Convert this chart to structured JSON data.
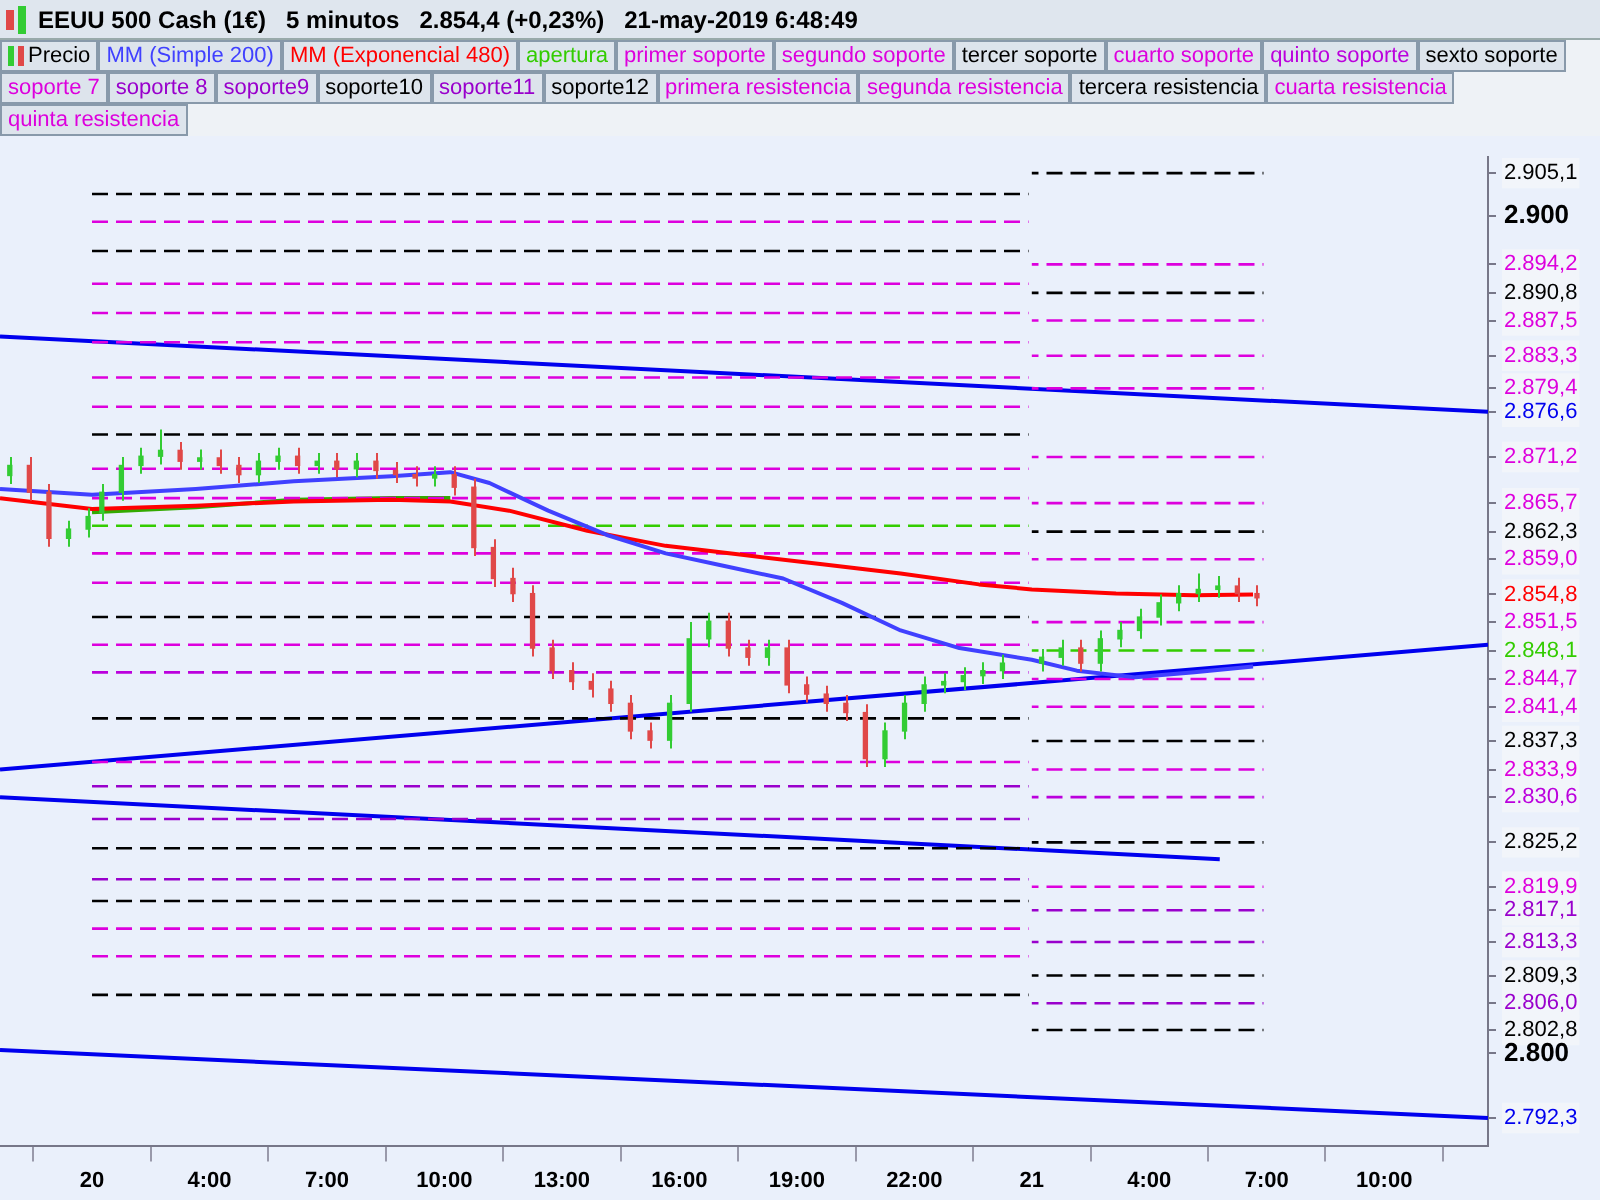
{
  "chart_data": {
    "type": "candlestick",
    "title": "EEUU 500 Cash (1€)   5 minutos   2.854,4 (+0,23%)   21-may-2019 6:48:49",
    "xlim": [
      "2019-05-19T22:39",
      "2019-05-21T12:39"
    ],
    "xticks": [
      {
        "value": "2019-05-20T01:00",
        "label": "20"
      },
      {
        "value": "2019-05-20T04:00",
        "label": "4:00"
      },
      {
        "value": "2019-05-20T07:00",
        "label": "7:00"
      },
      {
        "value": "2019-05-20T10:00",
        "label": "10:00"
      },
      {
        "value": "2019-05-20T13:00",
        "label": "13:00"
      },
      {
        "value": "2019-05-20T16:00",
        "label": "16:00"
      },
      {
        "value": "2019-05-20T19:00",
        "label": "19:00"
      },
      {
        "value": "2019-05-20T22:00",
        "label": "22:00"
      },
      {
        "value": "2019-05-21T01:00",
        "label": "21"
      },
      {
        "value": "2019-05-21T04:00",
        "label": "4:00"
      },
      {
        "value": "2019-05-21T07:00",
        "label": "7:00"
      },
      {
        "value": "2019-05-21T10:00",
        "label": "10:00"
      }
    ],
    "ylim": [
      2789,
      2907
    ],
    "yticks": [
      {
        "value": 2905.1,
        "label": "2.905,1"
      },
      {
        "value": 2900,
        "label": "2.900"
      },
      {
        "value": 2894.2,
        "label": "2.894,2"
      },
      {
        "value": 2890.8,
        "label": "2.890,8"
      },
      {
        "value": 2887.5,
        "label": "2.887,5"
      },
      {
        "value": 2883.3,
        "label": "2.883,3"
      },
      {
        "value": 2879.4,
        "label": "2.879,4"
      },
      {
        "value": 2876.6,
        "label": "2.876,6"
      },
      {
        "value": 2871.2,
        "label": "2.871,2"
      },
      {
        "value": 2865.7,
        "label": "2.865,7"
      },
      {
        "value": 2862.3,
        "label": "2.862,3"
      },
      {
        "value": 2859.0,
        "label": "2.859,0"
      },
      {
        "value": 2854.8,
        "label": "2.854,8"
      },
      {
        "value": 2851.5,
        "label": "2.851,5"
      },
      {
        "value": 2848.1,
        "label": "2.848,1"
      },
      {
        "value": 2844.7,
        "label": "2.844,7"
      },
      {
        "value": 2841.4,
        "label": "2.841,4"
      },
      {
        "value": 2837.3,
        "label": "2.837,3"
      },
      {
        "value": 2833.9,
        "label": "2.833,9"
      },
      {
        "value": 2830.6,
        "label": "2.830,6"
      },
      {
        "value": 2825.2,
        "label": "2.825,2"
      },
      {
        "value": 2819.9,
        "label": "2.819,9"
      },
      {
        "value": 2817.1,
        "label": "2.817,1"
      },
      {
        "value": 2813.3,
        "label": "2.813,3"
      },
      {
        "value": 2809.3,
        "label": "2.809,3"
      },
      {
        "value": 2806.0,
        "label": "2.806,0"
      },
      {
        "value": 2802.8,
        "label": "2.802,8"
      },
      {
        "value": 2800,
        "label": "2.800"
      },
      {
        "value": 2792.3,
        "label": "2.792,3"
      }
    ],
    "legend": "top",
    "marker": "none",
    "series": [
      {
        "name": "Precio",
        "x": [
          "2019-05-19T22:54",
          "2019-05-19T23:24",
          "2019-05-19T23:54",
          "2019-05-20T00:24",
          "2019-05-20T00:54",
          "2019-05-20T01:15",
          "2019-05-20T01:45",
          "2019-05-20T02:15",
          "2019-05-20T02:45",
          "2019-05-20T03:15",
          "2019-05-20T03:45",
          "2019-05-20T04:15",
          "2019-05-20T04:45",
          "2019-05-20T05:15",
          "2019-05-20T05:45",
          "2019-05-20T06:15",
          "2019-05-20T06:45",
          "2019-05-20T07:15",
          "2019-05-20T07:45",
          "2019-05-20T08:15",
          "2019-05-20T08:45",
          "2019-05-20T09:15",
          "2019-05-20T09:45",
          "2019-05-20T10:15",
          "2019-05-20T10:45",
          "2019-05-20T11:15",
          "2019-05-20T11:45",
          "2019-05-20T12:15",
          "2019-05-20T12:45",
          "2019-05-20T13:15",
          "2019-05-20T13:45",
          "2019-05-20T14:15",
          "2019-05-20T14:45",
          "2019-05-20T15:15",
          "2019-05-20T15:45",
          "2019-05-20T16:15",
          "2019-05-20T16:45",
          "2019-05-20T17:15",
          "2019-05-20T17:45",
          "2019-05-20T18:15",
          "2019-05-20T18:45",
          "2019-05-20T19:15",
          "2019-05-20T19:45",
          "2019-05-20T20:15",
          "2019-05-20T20:45",
          "2019-05-20T21:15",
          "2019-05-20T21:45",
          "2019-05-20T22:15",
          "2019-05-20T22:45",
          "2019-05-20T23:15",
          "2019-05-20T23:45",
          "2019-05-21T00:15",
          "2019-05-21T01:15",
          "2019-05-21T01:45",
          "2019-05-21T02:15",
          "2019-05-21T02:45",
          "2019-05-21T03:15",
          "2019-05-21T03:45",
          "2019-05-21T04:15",
          "2019-05-21T04:45",
          "2019-05-21T05:15",
          "2019-05-21T05:45",
          "2019-05-21T06:15",
          "2019-05-21T06:45"
        ],
        "ohlc": [
          [
            2869.0,
            2871.2,
            2868.0,
            2870.2
          ],
          [
            2870.2,
            2871.2,
            2866.0,
            2867.0
          ],
          [
            2867.0,
            2868.0,
            2860.5,
            2861.5
          ],
          [
            2861.5,
            2863.6,
            2860.5,
            2862.6
          ],
          [
            2862.6,
            2865.1,
            2861.6,
            2864.1
          ],
          [
            2864.6,
            2868.0,
            2863.6,
            2867.0
          ],
          [
            2867.0,
            2871.2,
            2866.0,
            2870.2
          ],
          [
            2870.2,
            2872.3,
            2869.2,
            2871.3
          ],
          [
            2871.3,
            2874.5,
            2870.3,
            2872.0
          ],
          [
            2872.0,
            2873.0,
            2869.7,
            2870.7
          ],
          [
            2870.7,
            2872.1,
            2869.7,
            2871.1
          ],
          [
            2871.1,
            2872.1,
            2869.2,
            2870.2
          ],
          [
            2870.2,
            2871.2,
            2868.1,
            2869.1
          ],
          [
            2869.1,
            2871.7,
            2868.1,
            2870.7
          ],
          [
            2870.7,
            2872.3,
            2869.7,
            2871.3
          ],
          [
            2871.3,
            2872.3,
            2869.2,
            2870.2
          ],
          [
            2870.2,
            2871.7,
            2869.2,
            2870.7
          ],
          [
            2870.7,
            2871.7,
            2868.8,
            2869.8
          ],
          [
            2869.8,
            2871.7,
            2868.8,
            2870.7
          ],
          [
            2870.7,
            2871.7,
            2868.6,
            2869.6
          ],
          [
            2869.6,
            2870.6,
            2868.1,
            2869.1
          ],
          [
            2869.1,
            2870.1,
            2867.7,
            2868.7
          ],
          [
            2868.7,
            2870.1,
            2867.7,
            2869.1
          ],
          [
            2869.1,
            2870.1,
            2866.6,
            2867.6
          ],
          [
            2867.6,
            2868.6,
            2859.4,
            2860.4
          ],
          [
            2860.4,
            2861.4,
            2855.7,
            2856.7
          ],
          [
            2856.7,
            2858.0,
            2853.9,
            2854.9
          ],
          [
            2854.9,
            2855.9,
            2847.4,
            2848.4
          ],
          [
            2848.4,
            2849.4,
            2844.7,
            2845.7
          ],
          [
            2845.7,
            2846.7,
            2843.4,
            2844.4
          ],
          [
            2844.4,
            2845.4,
            2842.5,
            2843.5
          ],
          [
            2843.5,
            2844.5,
            2840.8,
            2841.8
          ],
          [
            2841.8,
            2842.8,
            2837.5,
            2838.5
          ],
          [
            2838.5,
            2839.5,
            2836.4,
            2837.4
          ],
          [
            2837.4,
            2842.8,
            2836.4,
            2841.8
          ],
          [
            2841.8,
            2851.5,
            2840.8,
            2849.5
          ],
          [
            2849.5,
            2852.6,
            2848.5,
            2851.6
          ],
          [
            2851.6,
            2852.6,
            2847.4,
            2848.4
          ],
          [
            2848.4,
            2849.4,
            2846.3,
            2847.3
          ],
          [
            2847.3,
            2849.4,
            2846.3,
            2848.4
          ],
          [
            2848.4,
            2849.4,
            2843.0,
            2844.0
          ],
          [
            2844.0,
            2845.0,
            2841.9,
            2842.9
          ],
          [
            2842.9,
            2843.9,
            2840.8,
            2841.8
          ],
          [
            2841.8,
            2842.8,
            2839.7,
            2840.7
          ],
          [
            2840.7,
            2841.7,
            2834.2,
            2835.2
          ],
          [
            2835.2,
            2839.5,
            2834.2,
            2838.5
          ],
          [
            2838.5,
            2842.8,
            2837.5,
            2841.8
          ],
          [
            2841.8,
            2845.0,
            2840.8,
            2844.0
          ],
          [
            2844.0,
            2845.4,
            2843.0,
            2844.4
          ],
          [
            2844.4,
            2846.1,
            2843.4,
            2845.1
          ],
          [
            2845.1,
            2846.7,
            2844.1,
            2845.7
          ],
          [
            2845.7,
            2847.6,
            2844.7,
            2846.6
          ],
          [
            2846.6,
            2848.3,
            2845.6,
            2847.3
          ],
          [
            2847.3,
            2849.4,
            2846.3,
            2848.4
          ],
          [
            2848.4,
            2849.4,
            2845.6,
            2846.6
          ],
          [
            2846.6,
            2850.5,
            2845.6,
            2849.5
          ],
          [
            2849.5,
            2851.5,
            2848.5,
            2850.5
          ],
          [
            2850.5,
            2853.1,
            2849.5,
            2852.1
          ],
          [
            2852.1,
            2854.8,
            2851.1,
            2853.8
          ],
          [
            2853.8,
            2855.9,
            2852.8,
            2854.9
          ],
          [
            2854.9,
            2857.3,
            2853.9,
            2855.4
          ],
          [
            2855.4,
            2857.0,
            2854.4,
            2855.8
          ],
          [
            2855.8,
            2856.8,
            2853.9,
            2854.9
          ],
          [
            2854.9,
            2855.9,
            2853.4,
            2854.4
          ]
        ],
        "colors": [
          "#33cc33",
          "#e04848",
          "#e04848",
          "#33cc33",
          "#33cc33",
          "#33cc33",
          "#33cc33",
          "#33cc33",
          "#33cc33",
          "#e04848",
          "#33cc33",
          "#e04848",
          "#e04848",
          "#33cc33",
          "#33cc33",
          "#e04848",
          "#33cc33",
          "#e04848",
          "#33cc33",
          "#e04848",
          "#e04848",
          "#e04848",
          "#33cc33",
          "#e04848",
          "#e04848",
          "#e04848",
          "#e04848",
          "#e04848",
          "#e04848",
          "#e04848",
          "#e04848",
          "#e04848",
          "#e04848",
          "#e04848",
          "#33cc33",
          "#33cc33",
          "#33cc33",
          "#e04848",
          "#e04848",
          "#33cc33",
          "#e04848",
          "#e04848",
          "#e04848",
          "#e04848",
          "#e04848",
          "#33cc33",
          "#33cc33",
          "#33cc33",
          "#33cc33",
          "#33cc33",
          "#33cc33",
          "#33cc33",
          "#33cc33",
          "#33cc33",
          "#e04848",
          "#33cc33",
          "#33cc33",
          "#33cc33",
          "#33cc33",
          "#33cc33",
          "#33cc33",
          "#33cc33",
          "#e04848",
          "#e04848"
        ]
      },
      {
        "name": "MM (Simple 200)",
        "type": "line",
        "color": "#4040ff",
        "line_style": "solid",
        "x": [
          "2019-05-19T22:39",
          "2019-05-20T01:00",
          "2019-05-20T03:39",
          "2019-05-20T06:09",
          "2019-05-20T08:39",
          "2019-05-20T10:09",
          "2019-05-20T11:09",
          "2019-05-20T12:39",
          "2019-05-20T14:09",
          "2019-05-20T15:39",
          "2019-05-20T17:09",
          "2019-05-20T18:39",
          "2019-05-20T20:09",
          "2019-05-20T21:39",
          "2019-05-20T23:09",
          "2019-05-21T01:00",
          "2019-05-21T02:09",
          "2019-05-21T03:39",
          "2019-05-21T05:09",
          "2019-05-21T06:39"
        ],
        "values": [
          2867.4,
          2866.7,
          2867.4,
          2868.3,
          2868.9,
          2869.4,
          2868.1,
          2864.8,
          2861.9,
          2859.7,
          2858.2,
          2856.7,
          2853.8,
          2850.5,
          2848.4,
          2847.0,
          2845.7,
          2844.9,
          2845.5,
          2846.2
        ]
      },
      {
        "name": "MM (Exponencial 480)",
        "type": "line",
        "color": "#ff0000",
        "line_style": "solid",
        "x": [
          "2019-05-19T22:39",
          "2019-05-20T01:00",
          "2019-05-20T03:39",
          "2019-05-20T06:09",
          "2019-05-20T08:39",
          "2019-05-20T10:09",
          "2019-05-20T11:39",
          "2019-05-20T13:39",
          "2019-05-20T15:39",
          "2019-05-20T17:39",
          "2019-05-20T19:39",
          "2019-05-20T21:39",
          "2019-05-20T23:39",
          "2019-05-21T01:00",
          "2019-05-21T03:09",
          "2019-05-21T05:09",
          "2019-05-21T06:39"
        ],
        "values": [
          2866.3,
          2865.0,
          2865.4,
          2865.9,
          2866.1,
          2865.9,
          2864.8,
          2862.4,
          2860.6,
          2859.5,
          2858.4,
          2857.3,
          2856.0,
          2855.4,
          2854.9,
          2854.7,
          2854.8
        ]
      },
      {
        "name": "apertura",
        "type": "line",
        "color": "#33cc00",
        "line_style": "dashed",
        "x": [
          "2019-05-20T01:00",
          "2019-05-21T00:55",
          "2019-05-21T00:57",
          "2019-05-21T01:00",
          "2019-05-21T06:55"
        ],
        "values": [
          2863.0,
          2863.0,
          null,
          2848.1,
          2848.1
        ]
      },
      {
        "name": "primer soporte",
        "type": "line",
        "color": "#dd00dd",
        "line_style": "dashed",
        "x": [
          "2019-05-20T01:00",
          "2019-05-21T00:55",
          "2019-05-21T00:57",
          "2019-05-21T01:00",
          "2019-05-21T06:55"
        ],
        "values": [
          2859.7,
          2859.7,
          null,
          2844.7,
          2844.7
        ]
      },
      {
        "name": "segundo soporte",
        "type": "line",
        "color": "#dd00dd",
        "line_style": "dashed",
        "x": [
          "2019-05-20T01:00",
          "2019-05-21T00:55",
          "2019-05-21T00:57",
          "2019-05-21T01:00",
          "2019-05-21T06:55"
        ],
        "values": [
          2856.2,
          2856.2,
          null,
          2841.4,
          2841.4
        ]
      },
      {
        "name": "tercer soporte",
        "type": "line",
        "color": "#000000",
        "line_style": "dashed",
        "x": [
          "2019-05-20T01:00",
          "2019-05-21T00:55",
          "2019-05-21T00:57",
          "2019-05-21T01:00",
          "2019-05-21T06:55"
        ],
        "values": [
          2852.1,
          2852.1,
          null,
          2837.3,
          2837.3
        ]
      },
      {
        "name": "cuarto soporte",
        "type": "line",
        "color": "#dd00dd",
        "line_style": "dashed",
        "x": [
          "2019-05-20T01:00",
          "2019-05-21T00:55",
          "2019-05-21T00:57",
          "2019-05-21T01:00",
          "2019-05-21T06:55"
        ],
        "values": [
          2848.8,
          2848.8,
          null,
          2833.9,
          2833.9
        ]
      },
      {
        "name": "quinto soporte",
        "type": "line",
        "color": "#bb00dd",
        "line_style": "dashed",
        "x": [
          "2019-05-20T01:00",
          "2019-05-21T00:55",
          "2019-05-21T00:57",
          "2019-05-21T01:00",
          "2019-05-21T06:55"
        ],
        "values": [
          2845.5,
          2845.5,
          null,
          2830.6,
          2830.6
        ]
      },
      {
        "name": "sexto soporte",
        "type": "line",
        "color": "#000000",
        "line_style": "dashed",
        "x": [
          "2019-05-20T01:00",
          "2019-05-21T00:55",
          "2019-05-21T00:57",
          "2019-05-21T01:00",
          "2019-05-21T06:55"
        ],
        "values": [
          2840.0,
          2840.0,
          null,
          2825.2,
          2825.2
        ]
      },
      {
        "name": "soporte 7",
        "type": "line",
        "color": "#dd00dd",
        "line_style": "dashed",
        "x": [
          "2019-05-20T01:00",
          "2019-05-21T00:55",
          "2019-05-21T00:57",
          "2019-05-21T01:00",
          "2019-05-21T06:55"
        ],
        "values": [
          2834.8,
          2834.8,
          null,
          2819.9,
          2819.9
        ]
      },
      {
        "name": "soporte 8",
        "type": "line",
        "color": "#9900cc",
        "line_style": "dashed",
        "x": [
          "2019-05-20T01:00",
          "2019-05-21T00:55",
          "2019-05-21T00:57",
          "2019-05-21T01:00",
          "2019-05-21T06:55"
        ],
        "values": [
          2831.9,
          2831.9,
          null,
          2817.1,
          2817.1
        ]
      },
      {
        "name": "soporte9",
        "type": "line",
        "color": "#9900cc",
        "line_style": "dashed",
        "x": [
          "2019-05-20T01:00",
          "2019-05-21T00:55",
          "2019-05-21T00:57",
          "2019-05-21T01:00",
          "2019-05-21T06:55"
        ],
        "values": [
          2828.0,
          2828.0,
          null,
          2813.3,
          2813.3
        ]
      },
      {
        "name": "soporte10",
        "type": "line",
        "color": "#000000",
        "line_style": "dashed",
        "x": [
          "2019-05-20T01:00",
          "2019-05-21T00:55",
          "2019-05-21T00:57",
          "2019-05-21T01:00",
          "2019-05-21T06:55"
        ],
        "values": [
          2824.5,
          2824.5,
          null,
          2809.3,
          2809.3
        ]
      },
      {
        "name": "soporte11",
        "type": "line",
        "color": "#9900cc",
        "line_style": "dashed",
        "x": [
          "2019-05-20T01:00",
          "2019-05-21T00:55",
          "2019-05-21T00:57",
          "2019-05-21T01:00",
          "2019-05-21T06:55"
        ],
        "values": [
          2820.8,
          2820.8,
          null,
          2806.0,
          2806.0
        ]
      },
      {
        "name": "soporte12",
        "type": "line",
        "color": "#000000",
        "line_style": "dashed",
        "x": [
          "2019-05-20T01:00",
          "2019-05-21T00:55",
          "2019-05-21T00:57",
          "2019-05-21T01:00",
          "2019-05-21T06:55"
        ],
        "values": [
          2818.2,
          2818.2,
          null,
          2802.8,
          2802.8
        ]
      },
      {
        "name": "primera resistencia",
        "type": "line",
        "color": "#dd00dd",
        "line_style": "dashed",
        "x": [
          "2019-05-20T01:00",
          "2019-05-21T00:55",
          "2019-05-21T00:57",
          "2019-05-21T01:00",
          "2019-05-21T06:55"
        ],
        "values": [
          2866.3,
          2866.3,
          null,
          2851.5,
          2851.5
        ]
      },
      {
        "name": "segunda resistencia",
        "type": "line",
        "color": "#dd00dd",
        "line_style": "dashed",
        "x": [
          "2019-05-20T01:00",
          "2019-05-21T00:55",
          "2019-05-21T00:57",
          "2019-05-21T01:00",
          "2019-05-21T06:55"
        ],
        "values": [
          2869.8,
          2869.8,
          null,
          2859.0,
          2859.0
        ]
      },
      {
        "name": "tercera resistencia",
        "type": "line",
        "color": "#000000",
        "line_style": "dashed",
        "x": [
          "2019-05-20T01:00",
          "2019-05-21T00:55",
          "2019-05-21T00:57",
          "2019-05-21T01:00",
          "2019-05-21T06:55"
        ],
        "values": [
          2873.9,
          2873.9,
          null,
          2862.3,
          2862.3
        ]
      },
      {
        "name": "cuarta resistencia",
        "type": "line",
        "color": "#dd00dd",
        "line_style": "dashed",
        "x": [
          "2019-05-20T01:00",
          "2019-05-21T00:55",
          "2019-05-21T00:57",
          "2019-05-21T01:00",
          "2019-05-21T06:55"
        ],
        "values": [
          2877.2,
          2877.2,
          null,
          2865.7,
          2865.7
        ]
      },
      {
        "name": "quinta resistencia",
        "type": "line",
        "color": "#dd00dd",
        "line_style": "dashed",
        "x": [
          "2019-05-20T01:00",
          "2019-05-21T00:55",
          "2019-05-21T00:57",
          "2019-05-21T01:00",
          "2019-05-21T06:55"
        ],
        "values": [
          2880.7,
          2880.7,
          null,
          2871.2,
          2871.2
        ]
      },
      {
        "type": "line",
        "color": "#dd00dd",
        "line_style": "dashed",
        "x": [
          "2019-05-20T01:00",
          "2019-05-21T00:55",
          "2019-05-21T00:57",
          "2019-05-21T01:00",
          "2019-05-21T06:55"
        ],
        "values": [
          2884.9,
          2884.9,
          null,
          2879.4,
          2879.4
        ]
      },
      {
        "type": "line",
        "color": "#dd00dd",
        "line_style": "dashed",
        "x": [
          "2019-05-20T01:00",
          "2019-05-21T00:55",
          "2019-05-21T00:57",
          "2019-05-21T01:00",
          "2019-05-21T06:55"
        ],
        "values": [
          2888.4,
          2888.4,
          null,
          2883.3,
          2883.3
        ]
      },
      {
        "type": "line",
        "color": "#dd00dd",
        "line_style": "dashed",
        "x": [
          "2019-05-20T01:00",
          "2019-05-21T00:55",
          "2019-05-21T00:57",
          "2019-05-21T01:00",
          "2019-05-21T06:55"
        ],
        "values": [
          2891.9,
          2891.9,
          null,
          2887.5,
          2887.5
        ]
      },
      {
        "type": "line",
        "color": "#000000",
        "line_style": "dashed",
        "x": [
          "2019-05-20T01:00",
          "2019-05-21T00:55",
          "2019-05-21T00:57",
          "2019-05-21T01:00",
          "2019-05-21T06:55"
        ],
        "values": [
          2895.8,
          2895.8,
          null,
          2890.8,
          2890.8
        ]
      },
      {
        "type": "line",
        "color": "#dd00dd",
        "line_style": "dashed",
        "x": [
          "2019-05-20T01:00",
          "2019-05-21T00:55",
          "2019-05-21T00:57",
          "2019-05-21T01:00",
          "2019-05-21T06:55"
        ],
        "values": [
          2899.3,
          2899.3,
          null,
          2894.2,
          2894.2
        ]
      },
      {
        "type": "line",
        "color": "#000000",
        "line_style": "dashed",
        "x": [
          "2019-05-20T01:00",
          "2019-05-21T00:55",
          "2019-05-21T00:57",
          "2019-05-21T01:00",
          "2019-05-21T06:55"
        ],
        "values": [
          2902.6,
          2902.6,
          null,
          2905.1,
          2905.1
        ]
      },
      {
        "type": "line",
        "color": "#dd00dd",
        "line_style": "dashed",
        "x": [
          "2019-05-20T01:00",
          "2019-05-21T00:55"
        ],
        "values": [
          2814.9,
          2814.9
        ]
      },
      {
        "type": "line",
        "color": "#dd00dd",
        "line_style": "dashed",
        "x": [
          "2019-05-20T01:00",
          "2019-05-21T00:55"
        ],
        "values": [
          2811.6,
          2811.6
        ]
      },
      {
        "type": "line",
        "color": "#000000",
        "line_style": "dashed",
        "x": [
          "2019-05-20T01:00",
          "2019-05-21T00:55"
        ],
        "values": [
          2807.0,
          2807.0
        ]
      },
      {
        "type": "line",
        "color": "#0000ee",
        "line_style": "solid",
        "x": [
          "2019-05-19T22:39",
          "2019-05-21T12:39"
        ],
        "values": [
          2885.6,
          2876.6
        ]
      },
      {
        "type": "line",
        "color": "#0000ee",
        "line_style": "solid",
        "x": [
          "2019-05-19T22:39",
          "2019-05-21T12:39"
        ],
        "values": [
          2833.9,
          2848.8
        ]
      },
      {
        "type": "line",
        "color": "#0000ee",
        "line_style": "solid",
        "x": [
          "2019-05-19T22:39",
          "2019-05-21T05:48"
        ],
        "values": [
          2830.6,
          2823.2
        ]
      },
      {
        "type": "line",
        "color": "#0000ee",
        "line_style": "solid",
        "x": [
          "2019-05-19T22:39",
          "2019-05-21T12:39"
        ],
        "values": [
          2800.4,
          2792.3
        ]
      },
      {
        "type": "line",
        "color": "#33aa00",
        "line_style": "solid",
        "x": [
          "2019-05-20T01:00",
          "2019-05-20T03:39",
          "2019-05-20T06:09",
          "2019-05-20T08:39",
          "2019-05-20T10:09"
        ],
        "values": [
          2864.6,
          2865.2,
          2866.1,
          2866.3,
          2866.3
        ]
      }
    ]
  }
}
